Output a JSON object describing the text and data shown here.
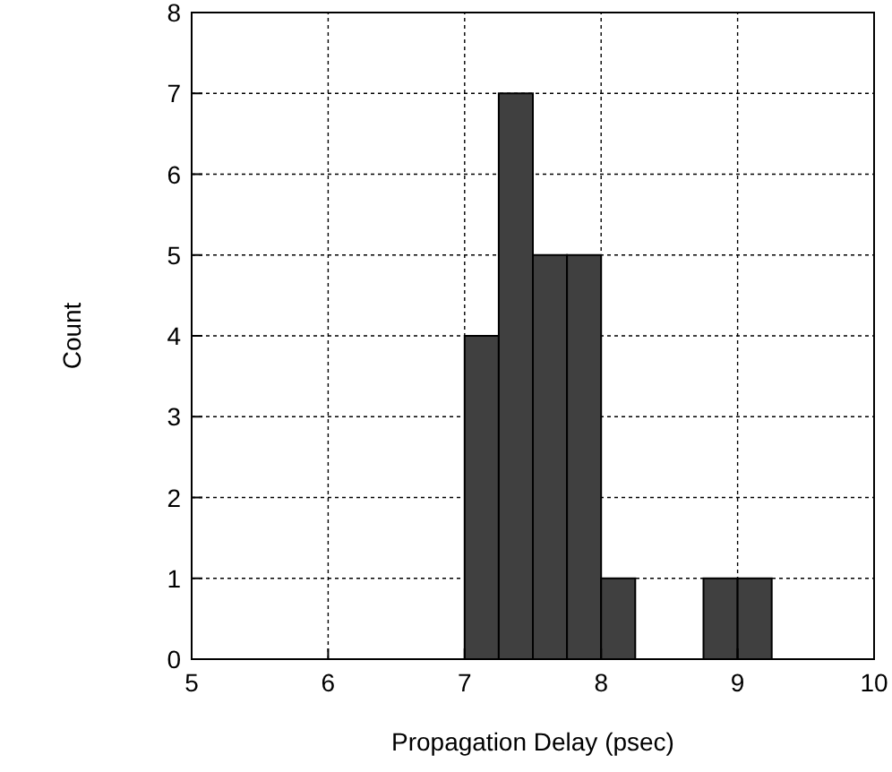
{
  "chart_data": {
    "type": "histogram",
    "xlabel": "Propagation Delay (psec)",
    "ylabel": "Count",
    "bins": [
      7,
      7.25,
      7.5,
      7.75,
      8,
      8.25,
      8.5,
      8.75,
      9,
      9.25
    ],
    "values": [
      4,
      7,
      5,
      5,
      1,
      0,
      0,
      1,
      1
    ],
    "color": "#404040",
    "xlim": [
      5,
      10
    ],
    "xticks": [
      5,
      6,
      7,
      8,
      9,
      10
    ],
    "ylim": [
      0,
      8
    ],
    "yticks": [
      0,
      1,
      2,
      3,
      4,
      5,
      6,
      7,
      8
    ],
    "grid": true
  }
}
